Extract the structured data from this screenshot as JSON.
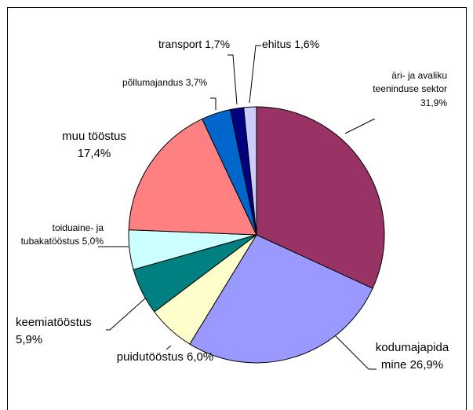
{
  "chart_data": {
    "type": "pie",
    "categories": [
      "äri- ja avaliku teeninduse sektor",
      "kodumajapidamine",
      "puidutööstus",
      "keemiatööstus",
      "toiduaine- ja tubakatööstus",
      "muu tööstus",
      "põllumajandus",
      "transport",
      "ehitus"
    ],
    "values": [
      31.9,
      26.9,
      6.0,
      5.9,
      5.0,
      17.4,
      3.7,
      1.7,
      1.6
    ],
    "value_labels": [
      "31,9%",
      "26,9%",
      "6,0%",
      "5,9%",
      "5,0%",
      "17,4%",
      "3,7%",
      "1,7%",
      "1,6%"
    ],
    "colors": [
      "#993366",
      "#9999ff",
      "#ffffcc",
      "#008080",
      "#ccffff",
      "#ff8080",
      "#0066cc",
      "#000080",
      "#ccccff"
    ]
  }
}
